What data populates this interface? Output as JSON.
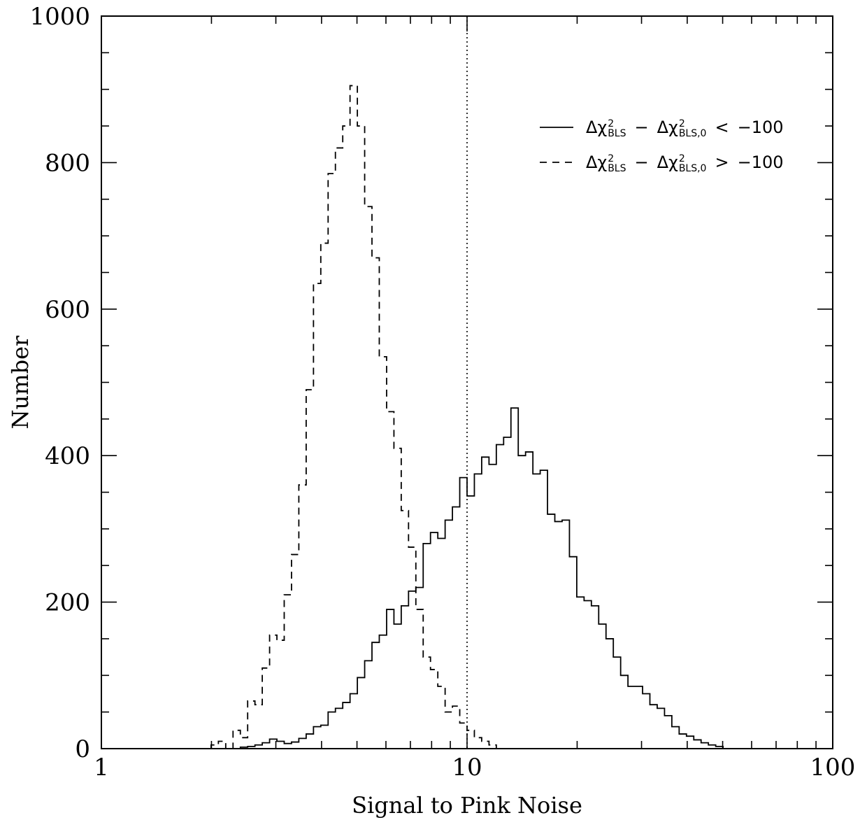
{
  "chart_data": {
    "type": "histogram",
    "x_scale": "log",
    "xlim": [
      1,
      100
    ],
    "ylim": [
      0,
      1000
    ],
    "xlabel": "Signal to Pink Noise",
    "ylabel": "Number",
    "x_ticks": [
      1,
      10,
      100
    ],
    "x_tick_labels": [
      "1",
      "10",
      "100"
    ],
    "y_ticks": [
      0,
      200,
      400,
      600,
      800,
      1000
    ],
    "y_tick_labels": [
      "0",
      "200",
      "400",
      "600",
      "800",
      "1000"
    ],
    "reference_line": {
      "x": 10,
      "style": "dotted"
    },
    "legend": {
      "position": "top-right",
      "entries": [
        {
          "style": "solid",
          "delta": "Δχ",
          "sup": "2",
          "sub1": "BLS",
          "minus": "−",
          "sub2": "BLS,0",
          "rel": "<",
          "value": "−100"
        },
        {
          "style": "dashed",
          "delta": "Δχ",
          "sup": "2",
          "sub1": "BLS",
          "minus": "−",
          "sub2": "BLS,0",
          "rel": ">",
          "value": "−100"
        }
      ]
    },
    "bin_edges": [
      1.995,
      2.089,
      2.188,
      2.291,
      2.399,
      2.512,
      2.63,
      2.754,
      2.884,
      3.02,
      3.162,
      3.311,
      3.467,
      3.631,
      3.802,
      3.981,
      4.169,
      4.365,
      4.571,
      4.786,
      5.012,
      5.248,
      5.495,
      5.754,
      6.026,
      6.31,
      6.607,
      6.918,
      7.244,
      7.586,
      7.943,
      8.318,
      8.71,
      9.12,
      9.55,
      10.0,
      10.471,
      10.965,
      11.482,
      12.023,
      12.589,
      13.183,
      13.804,
      14.454,
      15.136,
      15.849,
      16.596,
      17.378,
      18.197,
      19.055,
      19.953,
      20.893,
      21.878,
      22.909,
      23.988,
      25.119,
      26.303,
      27.542,
      28.84,
      30.2,
      31.623,
      33.113,
      34.674,
      36.308,
      38.019,
      39.811,
      41.687,
      43.652,
      45.709,
      47.863,
      50.119
    ],
    "series": [
      {
        "name": "Δχ²BLS − Δχ²BLS,0 < −100",
        "style": "solid",
        "values": [
          0,
          0,
          0,
          0,
          2,
          3,
          5,
          8,
          13,
          10,
          7,
          9,
          14,
          20,
          30,
          32,
          50,
          55,
          63,
          75,
          97,
          120,
          145,
          155,
          190,
          170,
          195,
          215,
          220,
          280,
          295,
          287,
          312,
          330,
          370,
          345,
          375,
          398,
          388,
          415,
          425,
          465,
          400,
          405,
          375,
          380,
          320,
          310,
          312,
          262,
          207,
          202,
          195,
          170,
          150,
          125,
          100,
          85,
          85,
          75,
          60,
          55,
          45,
          30,
          20,
          17,
          12,
          8,
          5,
          3
        ]
      },
      {
        "name": "Δχ²BLS − Δχ²BLS,0 > −100",
        "style": "dashed",
        "values": [
          5,
          10,
          0,
          25,
          15,
          65,
          60,
          110,
          155,
          148,
          210,
          265,
          360,
          490,
          635,
          690,
          785,
          820,
          850,
          905,
          850,
          740,
          670,
          535,
          460,
          410,
          325,
          275,
          190,
          125,
          108,
          85,
          50,
          58,
          35,
          25,
          15,
          10,
          5,
          0,
          0,
          0,
          0,
          0,
          0,
          0,
          0,
          0,
          0,
          0,
          0,
          0,
          0,
          0,
          0,
          0,
          0,
          0,
          0,
          0,
          0,
          0,
          0,
          0,
          0,
          0,
          0,
          0,
          0,
          0
        ]
      }
    ]
  }
}
